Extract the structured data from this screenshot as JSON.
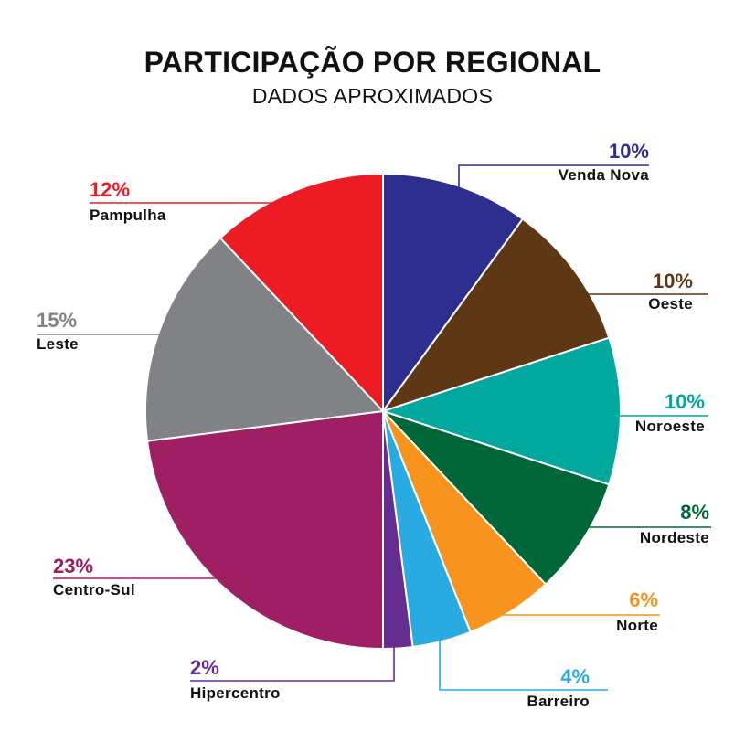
{
  "chart_data": {
    "type": "pie",
    "title": "PARTICIPAÇÃO POR REGIONAL",
    "subtitle": "DADOS APROXIMADOS",
    "slices": [
      {
        "name": "Venda Nova",
        "value": 10,
        "label": "10%",
        "color": "#2e2e8f"
      },
      {
        "name": "Oeste",
        "value": 10,
        "label": "10%",
        "color": "#5e3714"
      },
      {
        "name": "Noroeste",
        "value": 10,
        "label": "10%",
        "color": "#00a89d"
      },
      {
        "name": "Nordeste",
        "value": 8,
        "label": "8%",
        "color": "#006838"
      },
      {
        "name": "Norte",
        "value": 6,
        "label": "6%",
        "color": "#f7941d"
      },
      {
        "name": "Barreiro",
        "value": 4,
        "label": "4%",
        "color": "#29abe2"
      },
      {
        "name": "Hipercentro",
        "value": 2,
        "label": "2%",
        "color": "#662d91"
      },
      {
        "name": "Centro-Sul",
        "value": 23,
        "label": "23%",
        "color": "#9e1f63"
      },
      {
        "name": "Leste",
        "value": 15,
        "label": "15%",
        "color": "#808285"
      },
      {
        "name": "Pampulha",
        "value": 12,
        "label": "12%",
        "color": "#ed1c24"
      }
    ]
  }
}
